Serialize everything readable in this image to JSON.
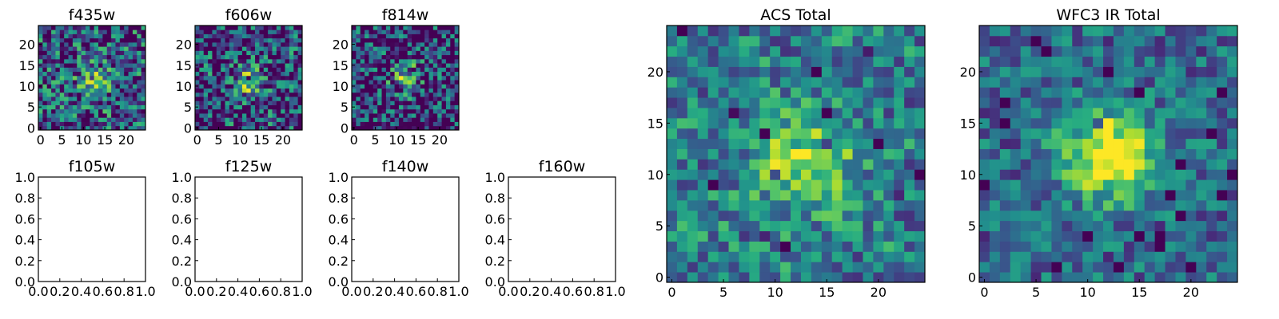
{
  "chart_data": [
    {
      "type": "heatmap",
      "title": "f435w",
      "xticks": [
        "0",
        "5",
        "10",
        "15",
        "20"
      ],
      "yticks": [
        "0",
        "5",
        "10",
        "15",
        "20"
      ],
      "grid": false,
      "colormap": "viridis",
      "noise": 0.55,
      "peak": 0.35,
      "center": [
        13,
        11
      ],
      "sigma": 3.0,
      "seed": 11
    },
    {
      "type": "heatmap",
      "title": "f606w",
      "xticks": [
        "0",
        "5",
        "10",
        "15",
        "20"
      ],
      "yticks": [
        "0",
        "5",
        "10",
        "15",
        "20"
      ],
      "grid": false,
      "colormap": "viridis",
      "noise": 0.6,
      "peak": 0.4,
      "center": [
        11,
        11
      ],
      "sigma": 3.0,
      "seed": 23
    },
    {
      "type": "heatmap",
      "title": "f814w",
      "xticks": [
        "0",
        "5",
        "10",
        "15",
        "20"
      ],
      "yticks": [
        "0",
        "5",
        "10",
        "15",
        "20"
      ],
      "grid": false,
      "colormap": "viridis",
      "noise": 0.6,
      "peak": 0.5,
      "center": [
        12,
        12
      ],
      "sigma": 2.6,
      "seed": 37
    },
    {
      "type": "line",
      "title": "f105w",
      "xticks": [
        "0.0",
        "0.2",
        "0.4",
        "0.6",
        "0.8",
        "1.0"
      ],
      "yticks": [
        "0.0",
        "0.2",
        "0.4",
        "0.6",
        "0.8",
        "1.0"
      ],
      "xlim": [
        0,
        1
      ],
      "ylim": [
        0,
        1
      ],
      "series": []
    },
    {
      "type": "line",
      "title": "f125w",
      "xticks": [
        "0.0",
        "0.2",
        "0.4",
        "0.6",
        "0.8",
        "1.0"
      ],
      "yticks": [
        "0.0",
        "0.2",
        "0.4",
        "0.6",
        "0.8",
        "1.0"
      ],
      "xlim": [
        0,
        1
      ],
      "ylim": [
        0,
        1
      ],
      "series": []
    },
    {
      "type": "line",
      "title": "f140w",
      "xticks": [
        "0.0",
        "0.2",
        "0.4",
        "0.6",
        "0.8",
        "1.0"
      ],
      "yticks": [
        "0.0",
        "0.2",
        "0.4",
        "0.6",
        "0.8",
        "1.0"
      ],
      "xlim": [
        0,
        1
      ],
      "ylim": [
        0,
        1
      ],
      "series": []
    },
    {
      "type": "line",
      "title": "f160w",
      "xticks": [
        "0.0",
        "0.2",
        "0.4",
        "0.6",
        "0.8",
        "1.0"
      ],
      "yticks": [
        "0.0",
        "0.2",
        "0.4",
        "0.6",
        "0.8",
        "1.0"
      ],
      "xlim": [
        0,
        1
      ],
      "ylim": [
        0,
        1
      ],
      "series": []
    },
    {
      "type": "heatmap",
      "title": "ACS Total",
      "xticks": [
        "0",
        "5",
        "10",
        "15",
        "20"
      ],
      "yticks": [
        "0",
        "5",
        "10",
        "15",
        "20"
      ],
      "grid": false,
      "colormap": "viridis",
      "noise": 0.35,
      "peak": 0.45,
      "center": [
        13,
        11
      ],
      "sigma": 3.2,
      "seed": 53
    },
    {
      "type": "heatmap",
      "title": "WFC3 IR Total",
      "xticks": [
        "0",
        "5",
        "10",
        "15",
        "20"
      ],
      "yticks": [
        "0",
        "5",
        "10",
        "15",
        "20"
      ],
      "grid": false,
      "colormap": "viridis",
      "noise": 0.3,
      "peak": 0.7,
      "center": [
        12,
        12
      ],
      "sigma": 3.0,
      "seed": 71
    }
  ]
}
